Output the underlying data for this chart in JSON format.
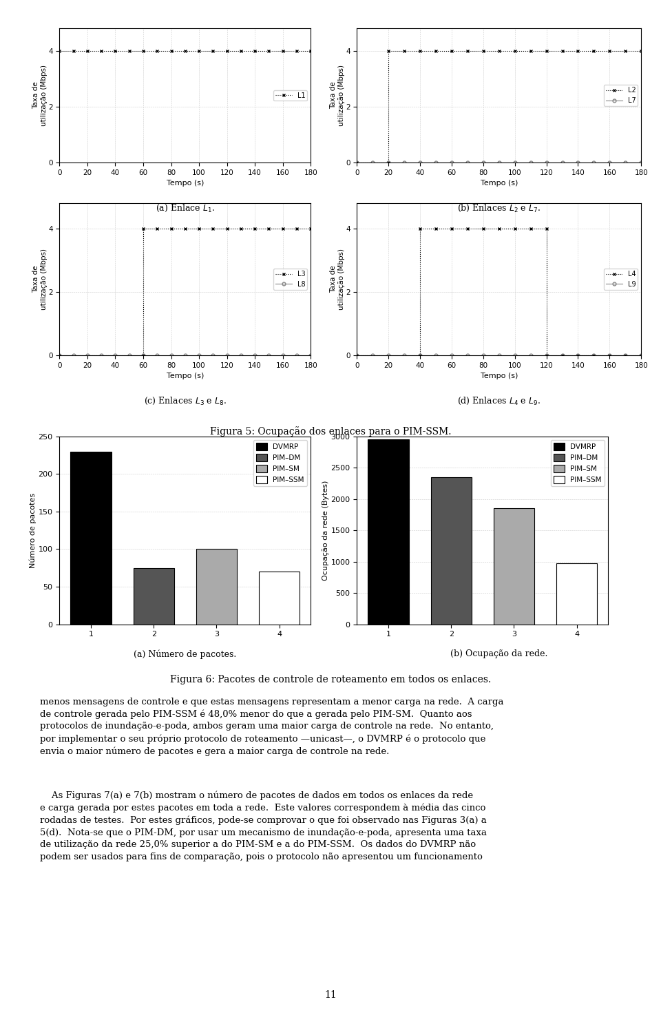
{
  "fig_width": 9.6,
  "fig_height": 14.74,
  "line_plots": [
    {
      "series": [
        {
          "label": "L1",
          "x": [
            0,
            10,
            20,
            30,
            40,
            50,
            60,
            70,
            80,
            90,
            100,
            110,
            120,
            130,
            140,
            150,
            160,
            170,
            180
          ],
          "y": [
            4,
            4,
            4,
            4,
            4,
            4,
            4,
            4,
            4,
            4,
            4,
            4,
            4,
            4,
            4,
            4,
            4,
            4,
            4
          ],
          "color": "#000000",
          "linestyle": "dotted",
          "marker": "x",
          "markersize": 3.5
        }
      ],
      "ylabel": "Taxa de\nutilização (Mbps)",
      "xlabel": "Tempo (s)",
      "ylim": [
        0,
        4.8
      ],
      "xlim": [
        0,
        180
      ],
      "yticks": [
        0,
        2,
        4
      ],
      "xticks": [
        0,
        20,
        40,
        60,
        80,
        100,
        120,
        140,
        160,
        180
      ]
    },
    {
      "series": [
        {
          "label": "L2",
          "x": [
            0,
            20,
            20,
            30,
            40,
            50,
            60,
            70,
            80,
            90,
            100,
            110,
            120,
            130,
            140,
            150,
            160,
            170,
            180
          ],
          "y": [
            0,
            0,
            4,
            4,
            4,
            4,
            4,
            4,
            4,
            4,
            4,
            4,
            4,
            4,
            4,
            4,
            4,
            4,
            4
          ],
          "color": "#000000",
          "linestyle": "dotted",
          "marker": "x",
          "markersize": 3.5
        },
        {
          "label": "L7",
          "x": [
            0,
            10,
            20,
            30,
            40,
            50,
            60,
            70,
            80,
            90,
            100,
            110,
            120,
            130,
            140,
            150,
            160,
            170,
            180
          ],
          "y": [
            0,
            0,
            0,
            0,
            0,
            0,
            0,
            0,
            0,
            0,
            0,
            0,
            0,
            0,
            0,
            0,
            0,
            0,
            0
          ],
          "color": "#888888",
          "linestyle": "solid",
          "marker": "o",
          "markersize": 3.5
        }
      ],
      "ylabel": "Taxa de\nutilização (Mbps)",
      "xlabel": "Tempo (s)",
      "ylim": [
        0,
        4.8
      ],
      "xlim": [
        0,
        180
      ],
      "yticks": [
        0,
        2,
        4
      ],
      "xticks": [
        0,
        20,
        40,
        60,
        80,
        100,
        120,
        140,
        160,
        180
      ]
    },
    {
      "series": [
        {
          "label": "L3",
          "x": [
            0,
            60,
            60,
            70,
            80,
            90,
            100,
            110,
            120,
            130,
            140,
            150,
            160,
            170,
            180
          ],
          "y": [
            0,
            0,
            4,
            4,
            4,
            4,
            4,
            4,
            4,
            4,
            4,
            4,
            4,
            4,
            4
          ],
          "color": "#000000",
          "linestyle": "dotted",
          "marker": "x",
          "markersize": 3.5
        },
        {
          "label": "L8",
          "x": [
            0,
            10,
            20,
            30,
            40,
            50,
            60,
            70,
            80,
            90,
            100,
            110,
            120,
            130,
            140,
            150,
            160,
            170,
            180
          ],
          "y": [
            0,
            0,
            0,
            0,
            0,
            0,
            0,
            0,
            0,
            0,
            0,
            0,
            0,
            0,
            0,
            0,
            0,
            0,
            0
          ],
          "color": "#888888",
          "linestyle": "solid",
          "marker": "o",
          "markersize": 3.5
        }
      ],
      "ylabel": "Taxa de\nutilização (Mbps)",
      "xlabel": "Tempo (s)",
      "ylim": [
        0,
        4.8
      ],
      "xlim": [
        0,
        180
      ],
      "yticks": [
        0,
        2,
        4
      ],
      "xticks": [
        0,
        20,
        40,
        60,
        80,
        100,
        120,
        140,
        160,
        180
      ]
    },
    {
      "series": [
        {
          "label": "L4",
          "x": [
            0,
            40,
            40,
            50,
            60,
            70,
            80,
            90,
            100,
            110,
            120,
            120,
            130,
            140,
            150,
            160,
            170,
            180
          ],
          "y": [
            0,
            0,
            4,
            4,
            4,
            4,
            4,
            4,
            4,
            4,
            4,
            0,
            0,
            0,
            0,
            0,
            0,
            0
          ],
          "color": "#000000",
          "linestyle": "dotted",
          "marker": "x",
          "markersize": 3.5
        },
        {
          "label": "L9",
          "x": [
            0,
            10,
            20,
            30,
            40,
            50,
            60,
            70,
            80,
            90,
            100,
            110,
            120,
            130,
            140,
            150,
            160,
            170,
            180
          ],
          "y": [
            0,
            0,
            0,
            0,
            0,
            0,
            0,
            0,
            0,
            0,
            0,
            0,
            0,
            0,
            0,
            0,
            0,
            0,
            0
          ],
          "color": "#888888",
          "linestyle": "solid",
          "marker": "o",
          "markersize": 3.5
        }
      ],
      "ylabel": "Taxa de\nutilização (Mbps)",
      "xlabel": "Tempo (s)",
      "ylim": [
        0,
        4.8
      ],
      "xlim": [
        0,
        180
      ],
      "yticks": [
        0,
        2,
        4
      ],
      "xticks": [
        0,
        20,
        40,
        60,
        80,
        100,
        120,
        140,
        160,
        180
      ]
    }
  ],
  "line_captions": [
    "(a) Enlace $L_1$.",
    "(b) Enlaces $L_2$ e $L_7$.",
    "(c) Enlaces $L_3$ e $L_8$.",
    "(d) Enlaces $L_4$ e $L_9$."
  ],
  "bar_chart_a": {
    "ylabel": "Número de pacotes",
    "categories": [
      1,
      2,
      3,
      4
    ],
    "values": [
      230,
      75,
      100,
      70
    ],
    "colors": [
      "#000000",
      "#555555",
      "#aaaaaa",
      "#ffffff"
    ],
    "edgecolors": [
      "#000000",
      "#000000",
      "#000000",
      "#000000"
    ],
    "ylim": [
      0,
      250
    ],
    "yticks": [
      0,
      50,
      100,
      150,
      200,
      250
    ],
    "xticks": [
      1,
      2,
      3,
      4
    ],
    "legend_labels": [
      "DVMRP",
      "PIM–DM",
      "PIM–SM",
      "PIM–SSM"
    ],
    "legend_colors": [
      "#000000",
      "#555555",
      "#aaaaaa",
      "#ffffff"
    ]
  },
  "bar_chart_b": {
    "ylabel": "Ocupação da rede (Bytes)",
    "categories": [
      1,
      2,
      3,
      4
    ],
    "values": [
      2950,
      2350,
      1850,
      975
    ],
    "colors": [
      "#000000",
      "#555555",
      "#aaaaaa",
      "#ffffff"
    ],
    "edgecolors": [
      "#000000",
      "#000000",
      "#000000",
      "#000000"
    ],
    "ylim": [
      0,
      3000
    ],
    "yticks": [
      0,
      500,
      1000,
      1500,
      2000,
      2500,
      3000
    ],
    "xticks": [
      1,
      2,
      3,
      4
    ],
    "legend_labels": [
      "DVMRP",
      "PIM–DM",
      "PIM–SM",
      "PIM–SSM"
    ],
    "legend_colors": [
      "#000000",
      "#555555",
      "#aaaaaa",
      "#ffffff"
    ]
  },
  "bar_captions": [
    "(a) Número de pacotes.",
    "(b) Ocupação da rede."
  ],
  "figura5_caption": "Figura 5: Ocupação dos enlaces para o PIM-SSM.",
  "figura6_caption": "Figura 6: Pacotes de controle de roteamento em todos os enlaces.",
  "page_number": "11",
  "background_color": "#ffffff"
}
